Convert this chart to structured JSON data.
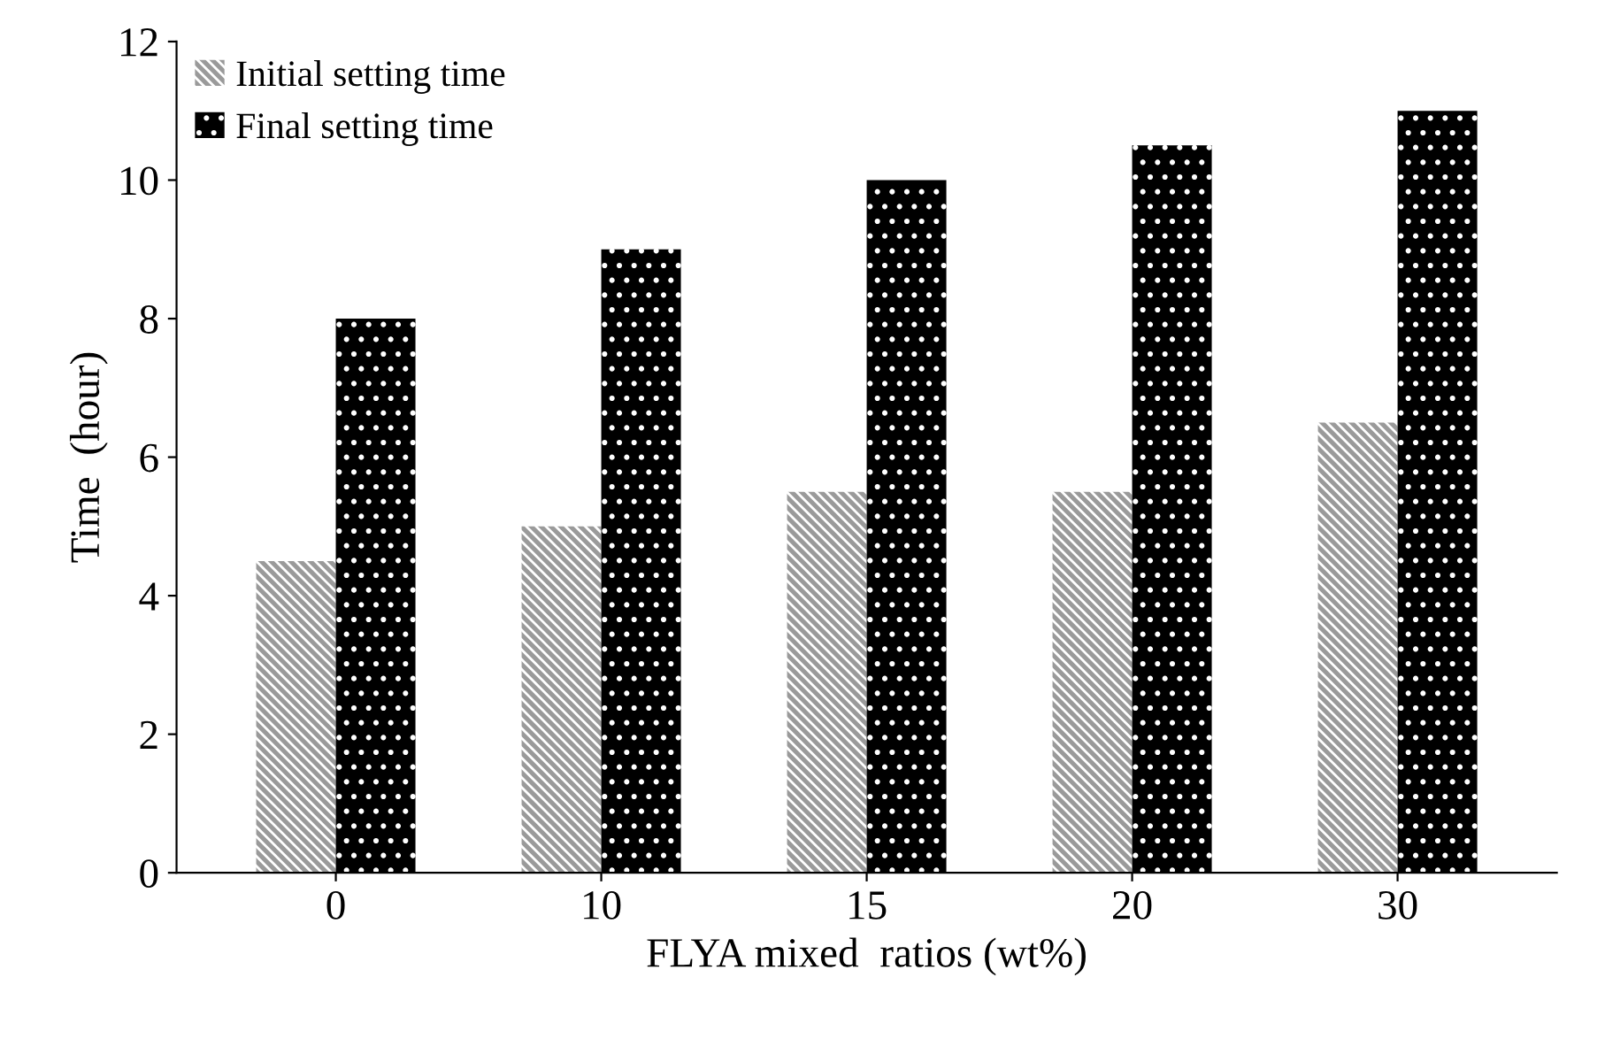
{
  "chart_data": {
    "type": "bar",
    "xlabel": "FLYA mixed  ratios (wt%)",
    "ylabel": "Time  (hour)",
    "categories": [
      "0",
      "10",
      "15",
      "20",
      "30"
    ],
    "series": [
      {
        "name": "Initial setting time",
        "color": "#9a9a9a",
        "values": [
          4.5,
          5,
          5.5,
          5.5,
          6.5
        ]
      },
      {
        "name": "Final setting time",
        "color": "#000000",
        "values": [
          8,
          9,
          10,
          10.5,
          11
        ]
      }
    ],
    "ylim": [
      0,
      12
    ],
    "yticks": [
      0,
      2,
      4,
      6,
      8,
      10,
      12
    ],
    "grid": false,
    "legend": "top left"
  }
}
